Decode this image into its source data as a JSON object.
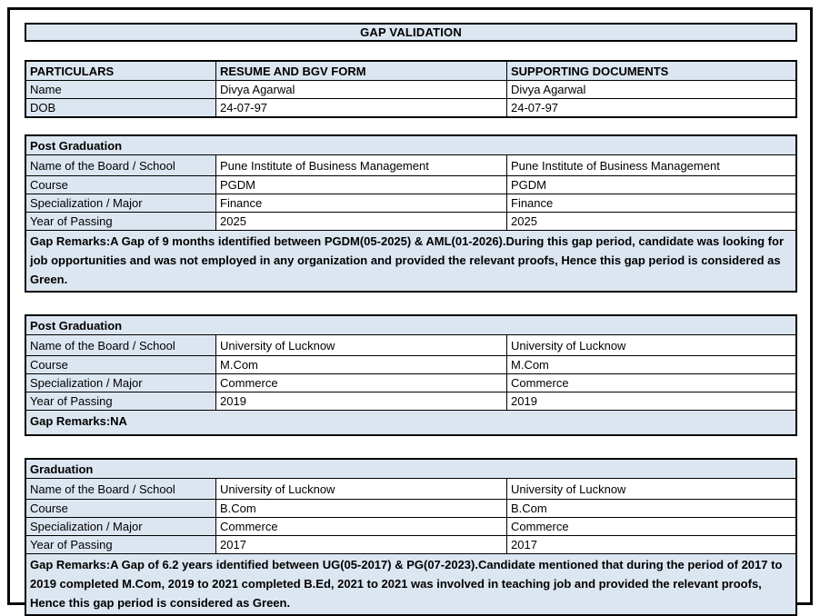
{
  "page": {
    "title": "GAP VALIDATION"
  },
  "colors": {
    "highlight": "#dce6f1",
    "border": "#000000",
    "background": "#ffffff"
  },
  "header": [
    "PARTICULARS",
    "RESUME AND BGV FORM",
    "SUPPORTING DOCUMENTS"
  ],
  "personal_rows": [
    {
      "label": "Name",
      "resume": "Divya Agarwal",
      "supporting": "Divya Agarwal"
    },
    {
      "label": "DOB",
      "resume": "24-07-97",
      "supporting": "24-07-97"
    }
  ],
  "sections": [
    {
      "title": "Post Graduation",
      "rows": [
        {
          "label": "Name of the Board / School",
          "resume": "Pune Institute of Business Management",
          "supporting": "Pune Institute of Business Management"
        },
        {
          "label": "Course",
          "resume": "PGDM",
          "supporting": "PGDM"
        },
        {
          "label": "Specialization / Major",
          "resume": "Finance",
          "supporting": "Finance"
        },
        {
          "label": "Year of Passing",
          "resume": "2025",
          "supporting": "2025"
        }
      ],
      "gap_remarks": "Gap Remarks:A Gap of 9 months identified between PGDM(05-2025) & AML(01-2026).During this gap period, candidate was looking for job opportunities and was not employed in any organization and provided the relevant proofs, Hence this gap period is considered as Green."
    },
    {
      "title": "Post Graduation",
      "rows": [
        {
          "label": "Name of the Board / School",
          "resume": "University of Lucknow",
          "supporting": "University of Lucknow"
        },
        {
          "label": "Course",
          "resume": "M.Com",
          "supporting": "M.Com"
        },
        {
          "label": "Specialization / Major",
          "resume": "Commerce",
          "supporting": "Commerce"
        },
        {
          "label": "Year of Passing",
          "resume": "2019",
          "supporting": "2019"
        }
      ],
      "gap_remarks": "Gap Remarks:NA"
    },
    {
      "title": "Graduation",
      "rows": [
        {
          "label": "Name of the Board / School",
          "resume": "University of Lucknow",
          "supporting": "University of Lucknow"
        },
        {
          "label": "Course",
          "resume": "B.Com",
          "supporting": "B.Com"
        },
        {
          "label": "Specialization / Major",
          "resume": "Commerce",
          "supporting": "Commerce"
        },
        {
          "label": "Year of Passing",
          "resume": "2017",
          "supporting": "2017"
        }
      ],
      "gap_remarks": "Gap Remarks:A Gap of 6.2 years identified between UG(05-2017) & PG(07-2023).Candidate mentioned that during the period of 2017 to 2019 completed M.Com, 2019 to 2021 completed B.Ed, 2021 to 2021 was involved in teaching job and provided the relevant proofs, Hence this gap period is considered as Green."
    }
  ]
}
